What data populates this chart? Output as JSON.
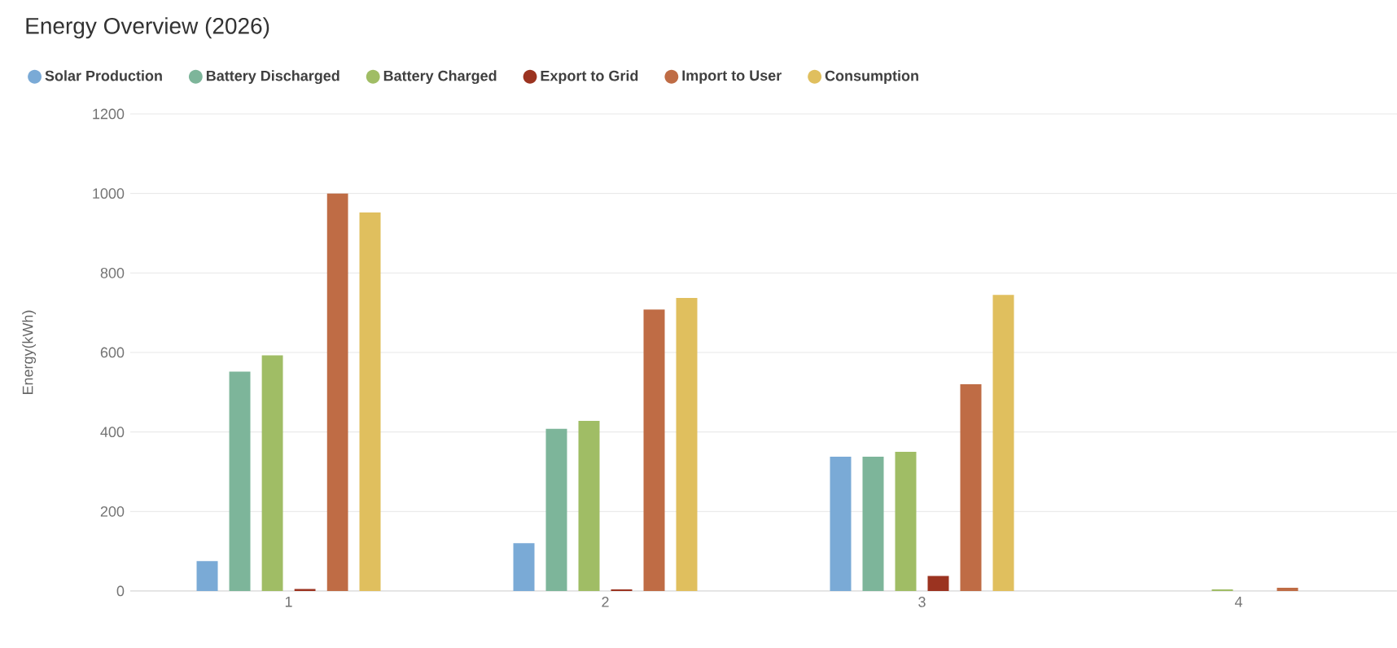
{
  "chart_data": {
    "type": "bar",
    "title": "Energy Overview (2026)",
    "ylabel": "Energy(kWh)",
    "categories": [
      "1",
      "2",
      "3",
      "4"
    ],
    "series": [
      {
        "name": "Solar Production",
        "color": "#7aaad6",
        "values": [
          75,
          120,
          338,
          0
        ]
      },
      {
        "name": "Battery Discharged",
        "color": "#7db59a",
        "values": [
          552,
          408,
          338,
          0
        ]
      },
      {
        "name": "Battery Charged",
        "color": "#a0bd65",
        "values": [
          593,
          428,
          350,
          4
        ]
      },
      {
        "name": "Export to Grid",
        "color": "#9b3320",
        "values": [
          5,
          4,
          38,
          0
        ]
      },
      {
        "name": "Import to User",
        "color": "#bf6c45",
        "values": [
          1000,
          708,
          520,
          8
        ]
      },
      {
        "name": "Consumption",
        "color": "#e0bf5e",
        "values": [
          952,
          737,
          745,
          0
        ]
      }
    ],
    "ylim": [
      0,
      1200
    ],
    "yticks": [
      0,
      200,
      400,
      600,
      800,
      1000,
      1200
    ],
    "grid": "y",
    "legend": "top"
  }
}
